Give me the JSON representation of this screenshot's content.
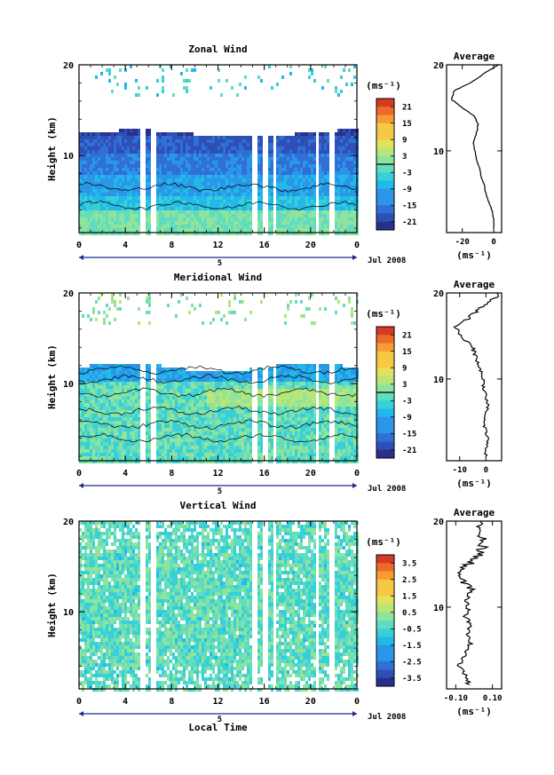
{
  "figure": {
    "xlabel": "Local Time",
    "month_label": "Jul 2008",
    "day_label": "5",
    "average_title": "Average",
    "unit_label": "(ms⁻¹)"
  },
  "chart_data": [
    {
      "type": "heatmap",
      "title": "Zonal Wind",
      "ylabel": "Height (km)",
      "xlim": [
        0,
        24
      ],
      "ylim": [
        1.5,
        20
      ],
      "x_ticks": [
        "0",
        "4",
        "8",
        "12",
        "16",
        "20",
        "0"
      ],
      "y_ticks": [
        "10",
        "20"
      ],
      "colorbar": {
        "label": "(ms⁻¹)",
        "min": -24,
        "max": 24,
        "ticks": [
          "21",
          "15",
          "9",
          "3",
          "-3",
          "-9",
          "-15",
          "-21"
        ]
      },
      "data_gaps_hours": [
        [
          5.2,
          5.6
        ],
        [
          6.2,
          6.6
        ],
        [
          14.9,
          15.3
        ],
        [
          15.8,
          16.2
        ],
        [
          16.6,
          17.0
        ],
        [
          20.3,
          20.6
        ],
        [
          21.6,
          21.9
        ]
      ],
      "profile_x_profile_description": "",
      "average_profile": {
        "xlim": [
          -30,
          5
        ],
        "x_ticks": [
          "-20",
          "0"
        ],
        "y_ticks": [
          "10",
          "20"
        ],
        "height_km": [
          1,
          2,
          3,
          4,
          5,
          6,
          7,
          8,
          9,
          10,
          11,
          12,
          13,
          14,
          15,
          16,
          17,
          18,
          19,
          20
        ],
        "value": [
          0,
          0,
          -1,
          -3,
          -5,
          -6,
          -8,
          -9,
          -11,
          -12,
          -13,
          -11,
          -10,
          -12,
          -20,
          -27,
          -25,
          -14,
          -6,
          3
        ]
      }
    },
    {
      "type": "heatmap",
      "title": "Meridional Wind",
      "ylabel": "Height (km)",
      "xlim": [
        0,
        24
      ],
      "ylim": [
        1.5,
        20
      ],
      "x_ticks": [
        "0",
        "4",
        "8",
        "12",
        "16",
        "20",
        "0"
      ],
      "y_ticks": [
        "10",
        "20"
      ],
      "colorbar": {
        "label": "(ms⁻¹)",
        "min": -24,
        "max": 24,
        "ticks": [
          "21",
          "15",
          "9",
          "3",
          "-3",
          "-9",
          "-15",
          "-21"
        ]
      },
      "data_gaps_hours": [
        [
          5.2,
          5.6
        ],
        [
          6.2,
          6.6
        ],
        [
          14.9,
          15.3
        ],
        [
          15.8,
          16.2
        ],
        [
          16.6,
          17.0
        ],
        [
          20.3,
          20.6
        ],
        [
          21.6,
          21.9
        ]
      ],
      "average_profile": {
        "xlim": [
          -15,
          6
        ],
        "x_ticks": [
          "-10",
          "0"
        ],
        "y_ticks": [
          "10",
          "20"
        ],
        "height_km": [
          1,
          2,
          3,
          4,
          5,
          6,
          7,
          8,
          9,
          10,
          11,
          12,
          13,
          14,
          15,
          16,
          17,
          18,
          19,
          20
        ],
        "value": [
          0,
          0,
          1,
          0,
          -1,
          0,
          1,
          0,
          -1,
          -1,
          -2,
          -3,
          -4,
          -6,
          -9,
          -12,
          -7,
          -3,
          2,
          5
        ]
      }
    },
    {
      "type": "heatmap",
      "title": "Vertical Wind",
      "ylabel": "Height (km)",
      "xlim": [
        0,
        24
      ],
      "ylim": [
        1.5,
        20
      ],
      "x_ticks": [
        "0",
        "4",
        "8",
        "12",
        "16",
        "20",
        "0"
      ],
      "y_ticks": [
        "10",
        "20"
      ],
      "colorbar": {
        "label": "(ms⁻¹)",
        "min": -4,
        "max": 4,
        "ticks": [
          "3.5",
          "2.5",
          "1.5",
          "0.5",
          "-0.5",
          "-1.5",
          "-2.5",
          "-3.5"
        ]
      },
      "data_gaps_hours": [
        [
          5.2,
          5.6
        ],
        [
          6.2,
          6.6
        ],
        [
          14.9,
          15.3
        ],
        [
          15.8,
          16.2
        ],
        [
          16.6,
          17.0
        ],
        [
          20.3,
          20.6
        ],
        [
          21.6,
          21.9
        ]
      ],
      "average_profile": {
        "xlim": [
          -0.15,
          0.15
        ],
        "x_ticks": [
          "-0.10",
          "0.10"
        ],
        "y_ticks": [
          "10",
          "20"
        ],
        "height_km": [
          1,
          2,
          3,
          4,
          5,
          6,
          7,
          8,
          9,
          10,
          11,
          12,
          13,
          14,
          15,
          16,
          17,
          18,
          19,
          20
        ],
        "value": [
          -0.03,
          -0.04,
          -0.08,
          -0.07,
          -0.03,
          -0.02,
          -0.03,
          -0.02,
          -0.05,
          -0.03,
          -0.04,
          -0.01,
          -0.07,
          -0.08,
          -0.03,
          0.02,
          0.05,
          0.04,
          0.03,
          0.02
        ]
      }
    }
  ],
  "colors": {
    "scale": [
      "#2c2f8a",
      "#2e4fb5",
      "#2f6fd6",
      "#2b95e8",
      "#22b8ea",
      "#37d0d8",
      "#62dcc0",
      "#8fe49c",
      "#b9e678",
      "#e2e35a",
      "#f6c843",
      "#f79b33",
      "#ee6a2a",
      "#d63a25"
    ],
    "vertical_base": [
      "#55d6d6",
      "#7ee4c4",
      "#a9e69b",
      "#2cb9e8"
    ]
  }
}
